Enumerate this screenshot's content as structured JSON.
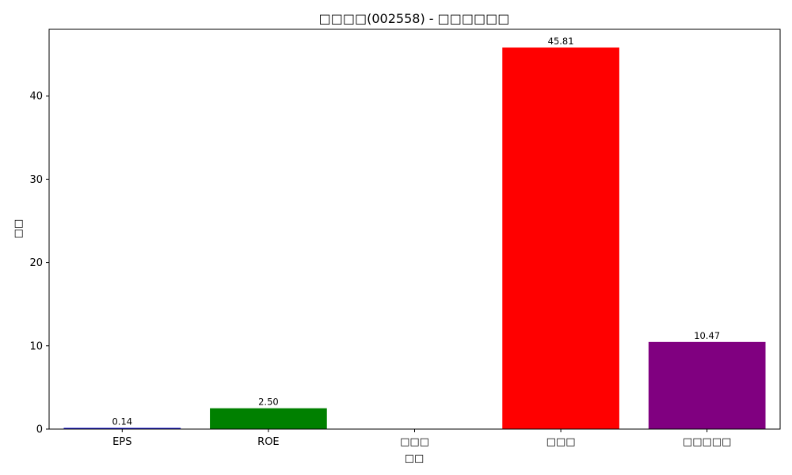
{
  "chart_data": {
    "type": "bar",
    "title": "□□□□(002558) - □□□□□□",
    "xlabel": "□□",
    "ylabel": "□□",
    "categories": [
      "EPS",
      "ROE",
      "□□□",
      "□□□",
      "□□□□□"
    ],
    "values": [
      0.14,
      2.5,
      0,
      45.81,
      10.47
    ],
    "data_labels": [
      "0.14",
      "2.50",
      "",
      "45.81",
      "10.47"
    ],
    "colors": [
      "#0000cc",
      "#008000",
      "#ffffff",
      "#ff0000",
      "#800080"
    ],
    "ylim": [
      0,
      48
    ],
    "yticks": [
      0,
      10,
      20,
      30,
      40
    ],
    "grid": false,
    "legend": "none"
  }
}
